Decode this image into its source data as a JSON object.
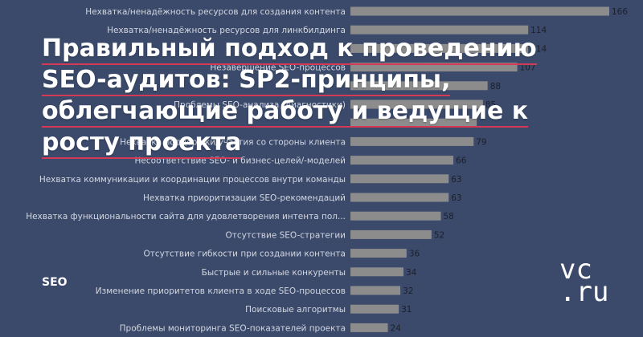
{
  "overlay": {
    "title_lines": [
      "Правильный подход к проведению",
      "SEO-аудитов: SP2-принципы,",
      "облегчающие работу и ведущие к",
      "росту проекта"
    ],
    "tag": "SEO",
    "logo_lines": [
      "vc",
      ".ru"
    ]
  },
  "colors": {
    "background": "#3b4a6b",
    "bar": "#8c8c8c",
    "label_text": "#d2d6e0",
    "value_text": "#1c1f2a",
    "title_underline": "#d43a55"
  },
  "chart_data": {
    "type": "bar",
    "orientation": "horizontal",
    "categories": [
      "Нехватка/ненадёжность ресурсов для создания контента",
      "Нехватка/ненадёжность ресурсов для линкбилдинга",
      "",
      "Незавершение SEO-процессов",
      "",
      "Проблемы SEO-анализа (диагностики)",
      "",
      "Нехватка поддержки/участия со стороны клиента",
      "Несоответствие SEO- и бизнес-целей/-моделей",
      "Нехватка коммуникации и координации процессов внутри команды",
      "Нехватка приоритизации SEO-рекомендаций",
      "Нехватка функциональности сайта для удовлетворения интента пол...",
      "Отсутствие SEO-стратегии",
      "Отсутствие гибкости при создании контента",
      "Быстрые и сильные конкуренты",
      "Изменение приоритетов клиента в ходе SEO-процессов",
      "Поисковые алгоритмы",
      "Проблемы мониторинга SEO-показателей проекта"
    ],
    "values": [
      166,
      114,
      114,
      107,
      88,
      85,
      81,
      79,
      66,
      63,
      63,
      58,
      52,
      36,
      34,
      32,
      31,
      24
    ],
    "value_labels": [
      "166",
      "114",
      "114",
      "107",
      "88",
      "85",
      "",
      "79",
      "66",
      "63",
      "63",
      "58",
      "52",
      "36",
      "34",
      "32",
      "31",
      "24"
    ],
    "xlim": [
      0,
      166
    ],
    "grid": false,
    "legend": "none"
  }
}
